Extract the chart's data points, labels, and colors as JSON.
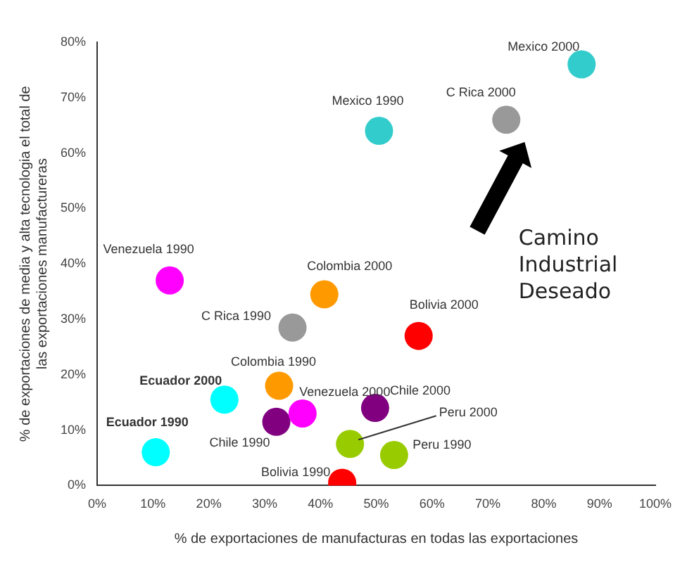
{
  "chart_data": {
    "type": "scatter",
    "xlabel": "% de exportaciones de manufacturas en todas las exportaciones",
    "ylabel": "% de exportaciones de media y alta tecnologia el total de las exportaciones manufactureras",
    "xlim": [
      0,
      100
    ],
    "ylim": [
      0,
      80
    ],
    "xticks": [
      {
        "value": 0,
        "label": "0%"
      },
      {
        "value": 10,
        "label": "10%"
      },
      {
        "value": 20,
        "label": "20%"
      },
      {
        "value": 30,
        "label": "30%"
      },
      {
        "value": 40,
        "label": "40%"
      },
      {
        "value": 50,
        "label": "50%"
      },
      {
        "value": 60,
        "label": "60%"
      },
      {
        "value": 70,
        "label": "70%"
      },
      {
        "value": 80,
        "label": "80%"
      },
      {
        "value": 90,
        "label": "90%"
      },
      {
        "value": 100,
        "label": "100%"
      }
    ],
    "yticks": [
      {
        "value": 0,
        "label": "0%"
      },
      {
        "value": 10,
        "label": "10%"
      },
      {
        "value": 20,
        "label": "20%"
      },
      {
        "value": 30,
        "label": "30%"
      },
      {
        "value": 40,
        "label": "40%"
      },
      {
        "value": 50,
        "label": "50%"
      },
      {
        "value": 60,
        "label": "60%"
      },
      {
        "value": 70,
        "label": "70%"
      },
      {
        "value": 80,
        "label": "80%"
      }
    ],
    "grid": false,
    "legend": false,
    "marker": "circle",
    "annotations": [
      "Camino Industrial Deseado"
    ],
    "series": [
      {
        "name": "Mexico 2000",
        "color": "#33cccc",
        "x": [
          86.8
        ],
        "values": [
          76
        ]
      },
      {
        "name": "C Rica 2000",
        "color": "#999999",
        "x": [
          73.3
        ],
        "values": [
          66
        ]
      },
      {
        "name": "Mexico 1990",
        "color": "#33cccc",
        "x": [
          50.5
        ],
        "values": [
          64
        ]
      },
      {
        "name": "Venezuela 1990",
        "color": "#ff00ff",
        "x": [
          13
        ],
        "values": [
          37
        ]
      },
      {
        "name": "Colombia 2000",
        "color": "#ff9900",
        "x": [
          40.7
        ],
        "values": [
          34.5
        ]
      },
      {
        "name": "C Rica 1990",
        "color": "#999999",
        "x": [
          35
        ],
        "values": [
          28.5
        ]
      },
      {
        "name": "Bolivia 2000",
        "color": "#ff0000",
        "x": [
          57.6
        ],
        "values": [
          27
        ]
      },
      {
        "name": "Ecuador 2000",
        "color": "#00ffff",
        "x": [
          22.8
        ],
        "values": [
          15.5
        ]
      },
      {
        "name": "Colombia 1990",
        "color": "#ff9900",
        "x": [
          32.6
        ],
        "values": [
          18
        ]
      },
      {
        "name": "Venezuela 2000",
        "color": "#ff00ff",
        "x": [
          36.8
        ],
        "values": [
          13
        ]
      },
      {
        "name": "Chile 1990",
        "color": "#800080",
        "x": [
          32.1
        ],
        "values": [
          11.5
        ]
      },
      {
        "name": "Chile 2000",
        "color": "#800080",
        "x": [
          49.8
        ],
        "values": [
          14
        ]
      },
      {
        "name": "Peru 2000",
        "color": "#99cc00",
        "x": [
          45.3
        ],
        "values": [
          7.5
        ]
      },
      {
        "name": "Peru 1990",
        "color": "#99cc00",
        "x": [
          53.2
        ],
        "values": [
          5.5
        ]
      },
      {
        "name": "Ecuador 1990",
        "color": "#00ffff",
        "x": [
          10.5
        ],
        "values": [
          6
        ]
      },
      {
        "name": "Bolivia 1990",
        "color": "#ff0000",
        "x": [
          43.9
        ],
        "values": [
          0.5
        ]
      }
    ]
  }
}
